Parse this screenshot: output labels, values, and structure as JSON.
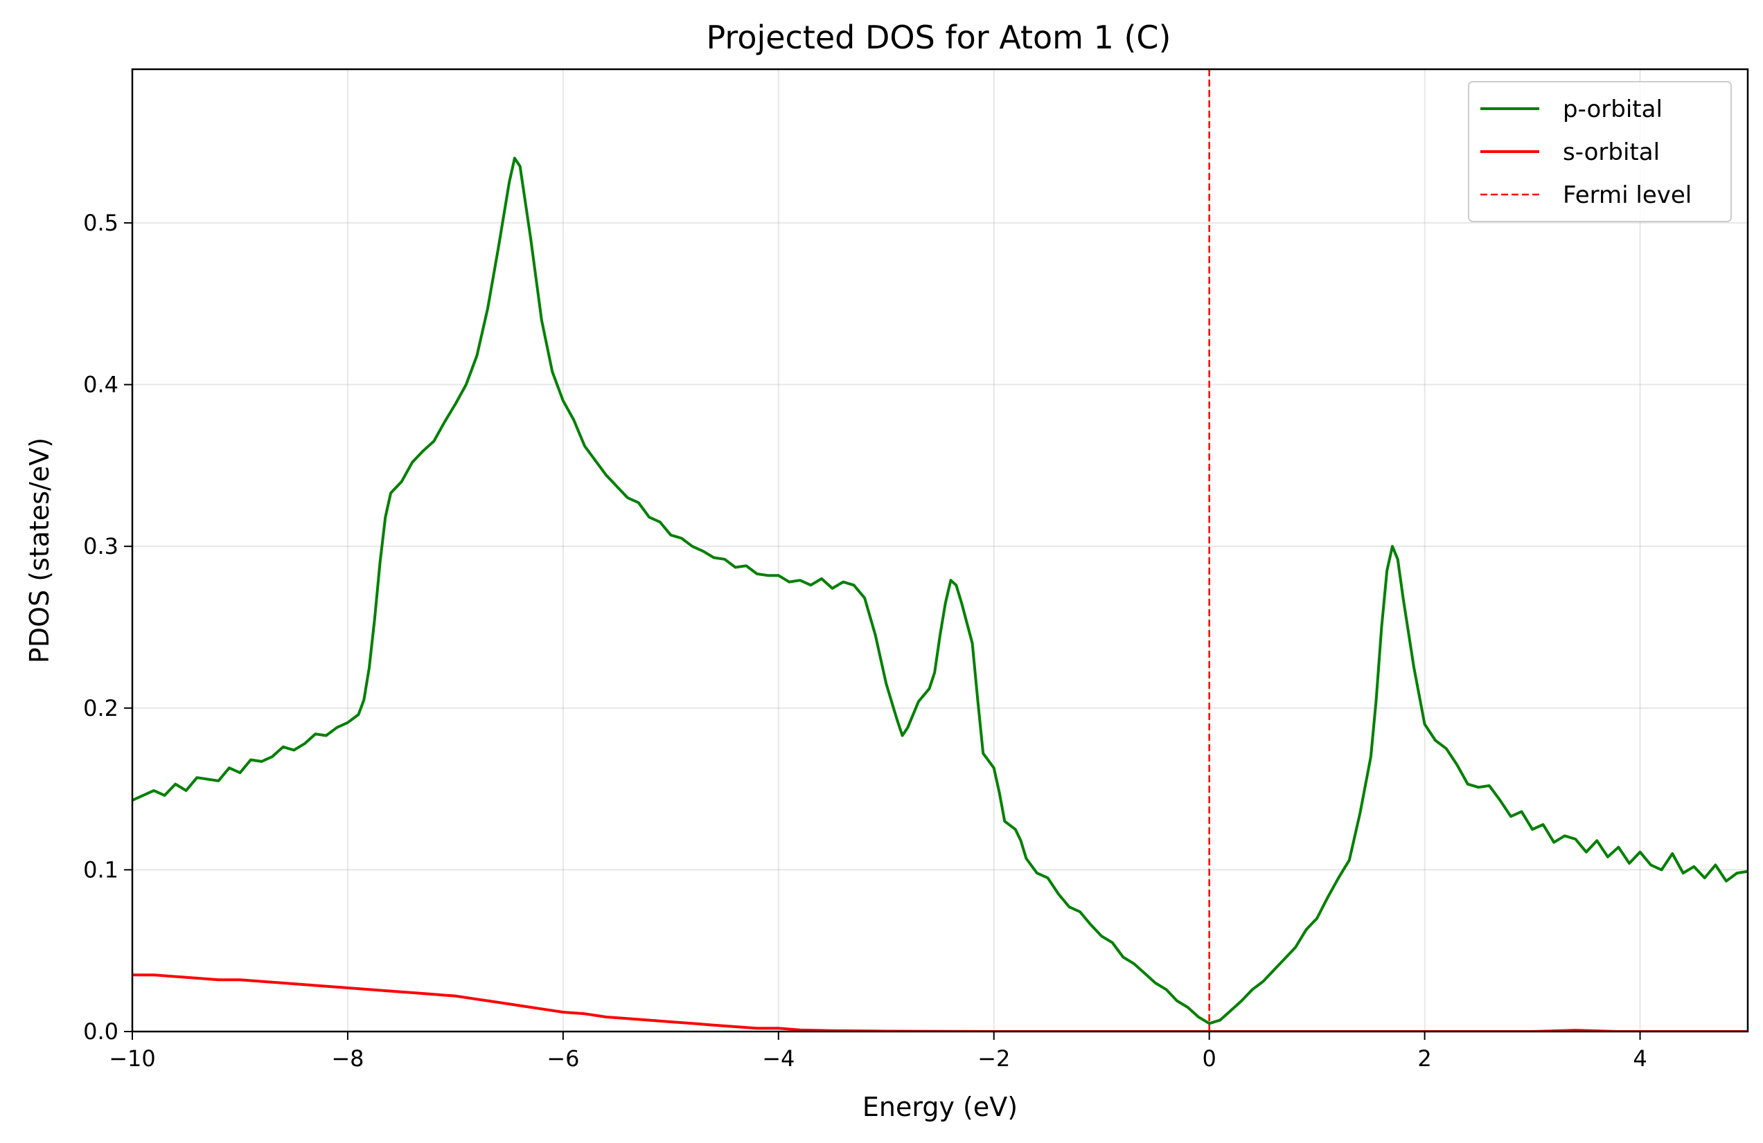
{
  "chart_data": {
    "type": "line",
    "title": "Projected DOS for Atom 1 (C)",
    "xlabel": "Energy (eV)",
    "ylabel": "PDOS (states/eV)",
    "xlim": [
      -10,
      5
    ],
    "ylim": [
      0,
      0.595
    ],
    "xticks": [
      -10,
      -8,
      -6,
      -4,
      -2,
      0,
      2,
      4
    ],
    "xtick_labels": [
      "−10",
      "−8",
      "−6",
      "−4",
      "−2",
      "0",
      "2",
      "4"
    ],
    "yticks": [
      0.0,
      0.1,
      0.2,
      0.3,
      0.4,
      0.5
    ],
    "ytick_labels": [
      "0.0",
      "0.1",
      "0.2",
      "0.3",
      "0.4",
      "0.5"
    ],
    "grid": true,
    "legend_position": "top-right",
    "series": [
      {
        "name": "p-orbital",
        "color": "#008000",
        "style": "solid",
        "points": [
          [
            -10.0,
            0.143
          ],
          [
            -9.8,
            0.149
          ],
          [
            -9.7,
            0.146
          ],
          [
            -9.6,
            0.153
          ],
          [
            -9.5,
            0.149
          ],
          [
            -9.4,
            0.157
          ],
          [
            -9.2,
            0.155
          ],
          [
            -9.1,
            0.163
          ],
          [
            -9.0,
            0.16
          ],
          [
            -8.9,
            0.168
          ],
          [
            -8.8,
            0.167
          ],
          [
            -8.7,
            0.17
          ],
          [
            -8.6,
            0.176
          ],
          [
            -8.5,
            0.174
          ],
          [
            -8.4,
            0.178
          ],
          [
            -8.3,
            0.184
          ],
          [
            -8.2,
            0.183
          ],
          [
            -8.1,
            0.188
          ],
          [
            -8.0,
            0.191
          ],
          [
            -7.9,
            0.196
          ],
          [
            -7.85,
            0.205
          ],
          [
            -7.8,
            0.225
          ],
          [
            -7.75,
            0.255
          ],
          [
            -7.7,
            0.29
          ],
          [
            -7.65,
            0.318
          ],
          [
            -7.6,
            0.333
          ],
          [
            -7.5,
            0.34
          ],
          [
            -7.4,
            0.352
          ],
          [
            -7.3,
            0.359
          ],
          [
            -7.2,
            0.365
          ],
          [
            -7.1,
            0.377
          ],
          [
            -7.0,
            0.388
          ],
          [
            -6.9,
            0.4
          ],
          [
            -6.8,
            0.418
          ],
          [
            -6.7,
            0.447
          ],
          [
            -6.6,
            0.485
          ],
          [
            -6.5,
            0.525
          ],
          [
            -6.45,
            0.54
          ],
          [
            -6.4,
            0.535
          ],
          [
            -6.3,
            0.49
          ],
          [
            -6.2,
            0.44
          ],
          [
            -6.1,
            0.408
          ],
          [
            -6.0,
            0.39
          ],
          [
            -5.9,
            0.378
          ],
          [
            -5.8,
            0.362
          ],
          [
            -5.7,
            0.353
          ],
          [
            -5.6,
            0.344
          ],
          [
            -5.5,
            0.337
          ],
          [
            -5.4,
            0.33
          ],
          [
            -5.3,
            0.327
          ],
          [
            -5.2,
            0.318
          ],
          [
            -5.1,
            0.315
          ],
          [
            -5.0,
            0.307
          ],
          [
            -4.9,
            0.305
          ],
          [
            -4.8,
            0.3
          ],
          [
            -4.7,
            0.297
          ],
          [
            -4.6,
            0.293
          ],
          [
            -4.5,
            0.292
          ],
          [
            -4.4,
            0.287
          ],
          [
            -4.3,
            0.288
          ],
          [
            -4.2,
            0.283
          ],
          [
            -4.1,
            0.282
          ],
          [
            -4.0,
            0.282
          ],
          [
            -3.9,
            0.278
          ],
          [
            -3.8,
            0.279
          ],
          [
            -3.7,
            0.276
          ],
          [
            -3.6,
            0.28
          ],
          [
            -3.5,
            0.274
          ],
          [
            -3.4,
            0.278
          ],
          [
            -3.3,
            0.276
          ],
          [
            -3.2,
            0.268
          ],
          [
            -3.1,
            0.245
          ],
          [
            -3.0,
            0.215
          ],
          [
            -2.9,
            0.193
          ],
          [
            -2.85,
            0.183
          ],
          [
            -2.8,
            0.188
          ],
          [
            -2.7,
            0.204
          ],
          [
            -2.6,
            0.212
          ],
          [
            -2.55,
            0.222
          ],
          [
            -2.5,
            0.245
          ],
          [
            -2.45,
            0.265
          ],
          [
            -2.4,
            0.279
          ],
          [
            -2.35,
            0.276
          ],
          [
            -2.3,
            0.265
          ],
          [
            -2.2,
            0.24
          ],
          [
            -2.15,
            0.205
          ],
          [
            -2.1,
            0.172
          ],
          [
            -2.0,
            0.163
          ],
          [
            -1.95,
            0.148
          ],
          [
            -1.9,
            0.13
          ],
          [
            -1.8,
            0.125
          ],
          [
            -1.75,
            0.118
          ],
          [
            -1.7,
            0.107
          ],
          [
            -1.6,
            0.098
          ],
          [
            -1.5,
            0.095
          ],
          [
            -1.4,
            0.085
          ],
          [
            -1.3,
            0.077
          ],
          [
            -1.2,
            0.074
          ],
          [
            -1.1,
            0.066
          ],
          [
            -1.0,
            0.059
          ],
          [
            -0.9,
            0.055
          ],
          [
            -0.8,
            0.046
          ],
          [
            -0.7,
            0.042
          ],
          [
            -0.6,
            0.036
          ],
          [
            -0.5,
            0.03
          ],
          [
            -0.4,
            0.026
          ],
          [
            -0.3,
            0.019
          ],
          [
            -0.2,
            0.015
          ],
          [
            -0.1,
            0.009
          ],
          [
            0.0,
            0.005
          ],
          [
            0.1,
            0.007
          ],
          [
            0.2,
            0.013
          ],
          [
            0.3,
            0.019
          ],
          [
            0.4,
            0.026
          ],
          [
            0.5,
            0.031
          ],
          [
            0.6,
            0.038
          ],
          [
            0.7,
            0.045
          ],
          [
            0.8,
            0.052
          ],
          [
            0.9,
            0.063
          ],
          [
            1.0,
            0.07
          ],
          [
            1.1,
            0.083
          ],
          [
            1.2,
            0.095
          ],
          [
            1.3,
            0.106
          ],
          [
            1.4,
            0.135
          ],
          [
            1.5,
            0.17
          ],
          [
            1.55,
            0.205
          ],
          [
            1.6,
            0.25
          ],
          [
            1.65,
            0.285
          ],
          [
            1.7,
            0.3
          ],
          [
            1.75,
            0.292
          ],
          [
            1.8,
            0.268
          ],
          [
            1.9,
            0.225
          ],
          [
            2.0,
            0.19
          ],
          [
            2.1,
            0.18
          ],
          [
            2.2,
            0.175
          ],
          [
            2.3,
            0.165
          ],
          [
            2.4,
            0.153
          ],
          [
            2.5,
            0.151
          ],
          [
            2.6,
            0.152
          ],
          [
            2.7,
            0.143
          ],
          [
            2.8,
            0.133
          ],
          [
            2.9,
            0.136
          ],
          [
            3.0,
            0.125
          ],
          [
            3.1,
            0.128
          ],
          [
            3.2,
            0.117
          ],
          [
            3.3,
            0.121
          ],
          [
            3.4,
            0.119
          ],
          [
            3.5,
            0.111
          ],
          [
            3.6,
            0.118
          ],
          [
            3.7,
            0.108
          ],
          [
            3.8,
            0.114
          ],
          [
            3.9,
            0.104
          ],
          [
            4.0,
            0.111
          ],
          [
            4.1,
            0.103
          ],
          [
            4.2,
            0.1
          ],
          [
            4.3,
            0.11
          ],
          [
            4.4,
            0.098
          ],
          [
            4.5,
            0.102
          ],
          [
            4.6,
            0.095
          ],
          [
            4.7,
            0.103
          ],
          [
            4.8,
            0.093
          ],
          [
            4.9,
            0.098
          ],
          [
            5.0,
            0.099
          ]
        ]
      },
      {
        "name": "s-orbital",
        "color": "#ff0000",
        "style": "solid",
        "points": [
          [
            -10.0,
            0.035
          ],
          [
            -9.8,
            0.035
          ],
          [
            -9.6,
            0.034
          ],
          [
            -9.4,
            0.033
          ],
          [
            -9.2,
            0.032
          ],
          [
            -9.0,
            0.032
          ],
          [
            -8.8,
            0.031
          ],
          [
            -8.6,
            0.03
          ],
          [
            -8.4,
            0.029
          ],
          [
            -8.2,
            0.028
          ],
          [
            -8.0,
            0.027
          ],
          [
            -7.8,
            0.026
          ],
          [
            -7.6,
            0.025
          ],
          [
            -7.4,
            0.024
          ],
          [
            -7.2,
            0.023
          ],
          [
            -7.0,
            0.022
          ],
          [
            -6.8,
            0.02
          ],
          [
            -6.6,
            0.018
          ],
          [
            -6.4,
            0.016
          ],
          [
            -6.2,
            0.014
          ],
          [
            -6.0,
            0.012
          ],
          [
            -5.8,
            0.011
          ],
          [
            -5.6,
            0.009
          ],
          [
            -5.4,
            0.008
          ],
          [
            -5.2,
            0.007
          ],
          [
            -5.0,
            0.006
          ],
          [
            -4.8,
            0.005
          ],
          [
            -4.6,
            0.004
          ],
          [
            -4.4,
            0.003
          ],
          [
            -4.2,
            0.002
          ],
          [
            -4.0,
            0.002
          ],
          [
            -3.8,
            0.001
          ],
          [
            -3.5,
            0.0005
          ],
          [
            -3.0,
            0.0002
          ],
          [
            -2.5,
            0.0001
          ],
          [
            -2.0,
            0.0
          ],
          [
            0.0,
            0.0
          ],
          [
            3.0,
            0.0
          ],
          [
            3.4,
            0.0008
          ],
          [
            3.8,
            0.0
          ],
          [
            5.0,
            0.0
          ]
        ]
      },
      {
        "name": "Fermi level",
        "color": "#ff0000",
        "style": "dashed",
        "x": 0.0
      }
    ]
  }
}
